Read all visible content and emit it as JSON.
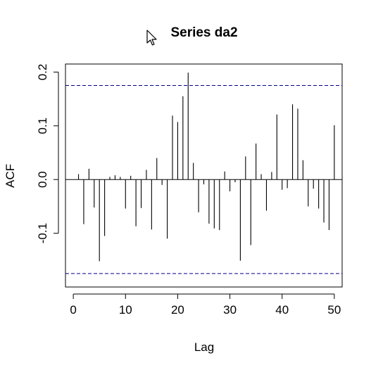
{
  "chart_data": {
    "type": "bar",
    "title": "Series da2",
    "xlabel": "Lag",
    "ylabel": "ACF",
    "xlim": [
      -1.5,
      51.5
    ],
    "ylim": [
      -0.2,
      0.215
    ],
    "x_ticks": [
      0,
      10,
      20,
      30,
      40,
      50
    ],
    "x_tick_labels": [
      "0",
      "10",
      "20",
      "30",
      "40",
      "50"
    ],
    "y_ticks": [
      -0.1,
      0.0,
      0.1,
      0.2
    ],
    "y_tick_labels": [
      "-0.1",
      "0.0",
      "0.1",
      "0.2"
    ],
    "zero_line": 0,
    "confidence_band": [
      0.175,
      -0.175
    ],
    "lags": [
      1,
      2,
      3,
      4,
      5,
      6,
      7,
      8,
      9,
      10,
      11,
      12,
      13,
      14,
      15,
      16,
      17,
      18,
      19,
      20,
      21,
      22,
      23,
      24,
      25,
      26,
      27,
      28,
      29,
      30,
      31,
      32,
      33,
      34,
      35,
      36,
      37,
      38,
      39,
      40,
      41,
      42,
      43,
      44,
      45,
      46,
      47,
      48,
      49,
      50
    ],
    "values": [
      0.01,
      -0.083,
      0.02,
      -0.052,
      -0.152,
      -0.105,
      0.005,
      0.008,
      0.005,
      -0.054,
      0.007,
      -0.087,
      -0.053,
      0.018,
      -0.093,
      0.04,
      -0.01,
      -0.11,
      0.119,
      0.107,
      0.155,
      0.199,
      0.031,
      -0.061,
      -0.009,
      -0.082,
      -0.091,
      -0.094,
      0.015,
      -0.022,
      -0.005,
      -0.151,
      0.043,
      -0.122,
      0.067,
      0.01,
      -0.058,
      0.014,
      0.121,
      -0.019,
      -0.016,
      0.14,
      0.132,
      0.036,
      -0.05,
      -0.017,
      -0.054,
      -0.08,
      -0.094,
      0.101
    ]
  },
  "colors": {
    "bars": "#000000",
    "ci": "#00008B",
    "axis": "#000000",
    "frame": "#000000"
  },
  "icons": {
    "cursor": "mouse-pointer-icon"
  }
}
